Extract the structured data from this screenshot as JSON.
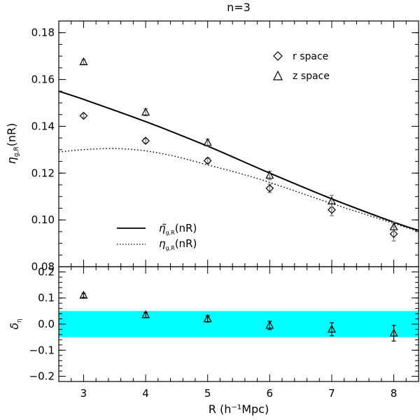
{
  "chart_data": [
    {
      "type": "line",
      "panel": "top",
      "title": "n=3",
      "xlabel": "R (h⁻¹Mpc)",
      "ylabel": "η_g,R(nR)",
      "ylabel_main": "η",
      "ylabel_sub": "g,R",
      "ylabel_tail": "(nR)",
      "xlim": [
        2.6,
        8.4
      ],
      "ylim": [
        0.08,
        0.185
      ],
      "x_ticks": [
        3,
        4,
        5,
        6,
        7,
        8
      ],
      "y_ticks": [
        0.08,
        0.1,
        0.12,
        0.14,
        0.16,
        0.18
      ],
      "y_tick_labels": [
        "0.08",
        "0.10",
        "0.12",
        "0.14",
        "0.16",
        "0.18"
      ],
      "legend_markers": [
        {
          "label": "r space",
          "marker": "diamond"
        },
        {
          "label": "z space",
          "marker": "triangle"
        }
      ],
      "legend_lines": [
        {
          "label_main": "η̃",
          "label_sub": "g,R",
          "label_tail": "(nR)",
          "style": "solid"
        },
        {
          "label_main": "η",
          "label_sub": "g,R",
          "label_tail": "(nR)",
          "style": "dotted"
        }
      ],
      "series": [
        {
          "name": "r space",
          "marker": "diamond",
          "x": [
            3,
            4,
            5,
            6,
            7,
            8
          ],
          "y": [
            0.1445,
            0.1338,
            0.1253,
            0.1135,
            0.1043,
            0.094
          ],
          "err": [
            0.0008,
            0.001,
            0.0012,
            0.0018,
            0.0025,
            0.003
          ]
        },
        {
          "name": "z space",
          "marker": "triangle",
          "x": [
            3,
            4,
            5,
            6,
            7,
            8
          ],
          "y": [
            0.1675,
            0.146,
            0.133,
            0.119,
            0.108,
            0.097
          ],
          "err": [
            0.001,
            0.0015,
            0.0015,
            0.0018,
            0.0025,
            0.002
          ]
        },
        {
          "name": "eta tilde (solid)",
          "style": "solid",
          "x": [
            2.6,
            3.0,
            4.0,
            5.0,
            6.0,
            7.0,
            8.0,
            8.4
          ],
          "y": [
            0.155,
            0.1515,
            0.142,
            0.1315,
            0.12,
            0.109,
            0.099,
            0.0955
          ]
        },
        {
          "name": "eta (dotted)",
          "style": "dotted",
          "x": [
            2.6,
            3.0,
            3.5,
            4.0,
            4.5,
            5.0,
            5.5,
            6.0,
            7.0,
            8.0,
            8.4
          ],
          "y": [
            0.129,
            0.13,
            0.1305,
            0.1295,
            0.127,
            0.1235,
            0.12,
            0.116,
            0.107,
            0.0985,
            0.095
          ]
        }
      ]
    },
    {
      "type": "scatter",
      "panel": "bottom",
      "xlabel": "R (h⁻¹Mpc)",
      "ylabel": "δ_η",
      "ylabel_main": "δ",
      "ylabel_sub": "η",
      "xlim": [
        2.6,
        8.4
      ],
      "ylim": [
        -0.22,
        0.22
      ],
      "x_ticks": [
        3,
        4,
        5,
        6,
        7,
        8
      ],
      "x_tick_labels": [
        "3",
        "4",
        "5",
        "6",
        "7",
        "8"
      ],
      "y_ticks": [
        -0.2,
        -0.1,
        0.0,
        0.1,
        0.2
      ],
      "y_tick_labels": [
        "−0.2",
        "−0.1",
        "0.0",
        "0.1",
        "0.2"
      ],
      "band": {
        "y_low": -0.05,
        "y_high": 0.05,
        "color": "#00ffff"
      },
      "series": [
        {
          "name": "z space",
          "marker": "triangle",
          "x": [
            3,
            4,
            5,
            6,
            7,
            8
          ],
          "y": [
            0.11,
            0.035,
            0.02,
            -0.005,
            -0.02,
            -0.035
          ],
          "err": [
            0.008,
            0.01,
            0.012,
            0.016,
            0.025,
            0.03
          ]
        }
      ]
    }
  ]
}
